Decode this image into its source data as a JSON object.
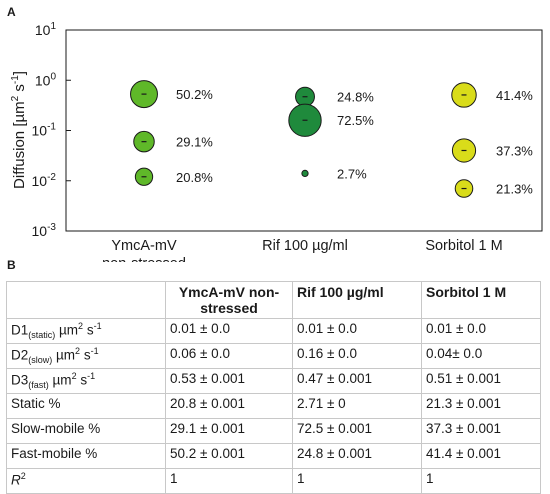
{
  "panels": {
    "a_label": "A",
    "b_label": "B"
  },
  "chart_data": {
    "type": "scatter",
    "ylabel_main": "Diffusion [µm",
    "ylabel_sup1": "2",
    "ylabel_mid": " s",
    "ylabel_sup2": "-1",
    "ylabel_end": "]",
    "yscale": "log",
    "ylim": [
      0.001,
      10
    ],
    "yticks": [
      {
        "base": "10",
        "exp": "-3"
      },
      {
        "base": "10",
        "exp": "-2"
      },
      {
        "base": "10",
        "exp": "-1"
      },
      {
        "base": "10",
        "exp": "0"
      },
      {
        "base": "10",
        "exp": "1"
      }
    ],
    "categories": [
      {
        "line1": "YmcA-mV",
        "line2": "non-stressed"
      },
      {
        "line1": "Rif 100 µg/ml",
        "line2": ""
      },
      {
        "line1": "Sorbitol 1 M",
        "line2": ""
      }
    ],
    "points": [
      {
        "cat": 0,
        "y": 0.53,
        "pct": 50.2,
        "label": "50.2%",
        "color": "#5fb829"
      },
      {
        "cat": 0,
        "y": 0.06,
        "pct": 29.1,
        "label": "29.1%",
        "color": "#5fb829"
      },
      {
        "cat": 0,
        "y": 0.012,
        "pct": 20.8,
        "label": "20.8%",
        "color": "#5fb829"
      },
      {
        "cat": 1,
        "y": 0.47,
        "pct": 24.8,
        "label": "24.8%",
        "color": "#1f8a3c"
      },
      {
        "cat": 1,
        "y": 0.16,
        "pct": 72.5,
        "label": "72.5%",
        "color": "#1f8a3c"
      },
      {
        "cat": 1,
        "y": 0.014,
        "pct": 2.7,
        "label": "2.7%",
        "color": "#1f8a3c"
      },
      {
        "cat": 2,
        "y": 0.51,
        "pct": 41.4,
        "label": "41.4%",
        "color": "#d9dc1a"
      },
      {
        "cat": 2,
        "y": 0.04,
        "pct": 37.3,
        "label": "37.3%",
        "color": "#d9dc1a"
      },
      {
        "cat": 2,
        "y": 0.007,
        "pct": 21.3,
        "label": "21.3%",
        "color": "#d9dc1a"
      }
    ]
  },
  "table": {
    "headers": [
      "",
      "YmcA-mV non-stressed",
      "Rif 100 µg/ml",
      "Sorbitol 1 M"
    ],
    "rows": [
      {
        "label_main": "D1",
        "label_sub": "(static)",
        "label_unit": " µm",
        "label_sup": "2",
        "label_unit2": " s",
        "label_sup2": "-1",
        "cells": [
          "0.01 ± 0.0",
          "0.01 ± 0.0",
          "0.01 ± 0.0"
        ]
      },
      {
        "label_main": "D2",
        "label_sub": "(slow)",
        "label_unit": " µm",
        "label_sup": "2",
        "label_unit2": " s",
        "label_sup2": "-1",
        "cells": [
          "0.06 ± 0.0",
          "0.16 ± 0.0",
          "0.04± 0.0"
        ]
      },
      {
        "label_main": "D3",
        "label_sub": "(fast)",
        "label_unit": " µm",
        "label_sup": "2",
        "label_unit2": " s",
        "label_sup2": "-1",
        "cells": [
          "0.53 ± 0.001",
          "0.47 ± 0.001",
          "0.51 ± 0.001"
        ]
      },
      {
        "label_main": "Static %",
        "cells": [
          "20.8 ± 0.001",
          "2.71 ± 0",
          "21.3 ± 0.001"
        ]
      },
      {
        "label_main": "Slow-mobile %",
        "cells": [
          "29.1 ± 0.001",
          "72.5 ± 0.001",
          "37.3 ± 0.001"
        ]
      },
      {
        "label_main": "Fast-mobile %",
        "cells": [
          "50.2 ± 0.001",
          "24.8 ± 0.001",
          "41.4 ± 0.001"
        ]
      },
      {
        "label_main": "R",
        "label_sup": "2",
        "italic": true,
        "cells": [
          "1",
          "1",
          "1"
        ]
      }
    ]
  }
}
